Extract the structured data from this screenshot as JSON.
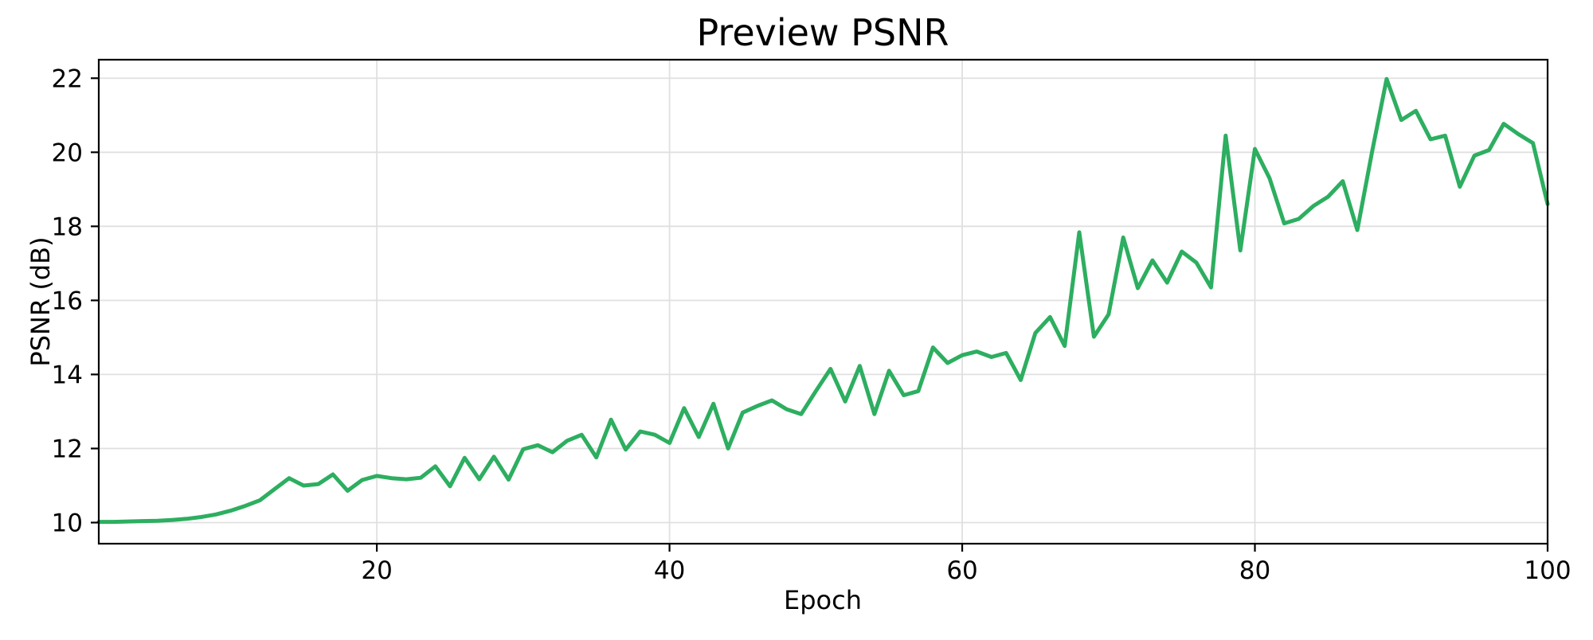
{
  "figure": {
    "background": "#ffffff",
    "text_color": "#000000"
  },
  "chart_data": {
    "type": "line",
    "title": "Preview PSNR",
    "xlabel": "Epoch",
    "ylabel": "PSNR (dB)",
    "grid": true,
    "legend": false,
    "xlim": [
      1,
      100
    ],
    "ylim": [
      9.43,
      22.5
    ],
    "x_ticks": [
      20,
      40,
      60,
      80,
      100
    ],
    "y_ticks": [
      10,
      12,
      14,
      16,
      18,
      20,
      22
    ],
    "series": [
      {
        "name": "preview-psnr",
        "color": "#2dae60",
        "line_width": 5,
        "x": [
          1,
          2,
          3,
          4,
          5,
          6,
          7,
          8,
          9,
          10,
          11,
          12,
          13,
          14,
          15,
          16,
          17,
          18,
          19,
          20,
          21,
          22,
          23,
          24,
          25,
          26,
          27,
          28,
          29,
          30,
          31,
          32,
          33,
          34,
          35,
          36,
          37,
          38,
          39,
          40,
          41,
          42,
          43,
          44,
          45,
          46,
          47,
          48,
          49,
          50,
          51,
          52,
          53,
          54,
          55,
          56,
          57,
          58,
          59,
          60,
          61,
          62,
          63,
          64,
          65,
          66,
          67,
          68,
          69,
          70,
          71,
          72,
          73,
          74,
          75,
          76,
          77,
          78,
          79,
          80,
          81,
          82,
          83,
          84,
          85,
          86,
          87,
          88,
          89,
          90,
          91,
          92,
          93,
          94,
          95,
          96,
          97,
          98,
          99,
          100
        ],
        "values": [
          10.02,
          10.02,
          10.03,
          10.04,
          10.05,
          10.07,
          10.1,
          10.15,
          10.22,
          10.32,
          10.45,
          10.6,
          10.9,
          11.2,
          11.0,
          11.04,
          11.3,
          10.86,
          11.15,
          11.26,
          11.2,
          11.17,
          11.21,
          11.52,
          10.98,
          11.75,
          11.17,
          11.78,
          11.16,
          11.98,
          12.09,
          11.9,
          12.21,
          12.37,
          11.76,
          12.78,
          11.97,
          12.46,
          12.37,
          12.15,
          13.09,
          12.31,
          13.21,
          12.0,
          12.97,
          13.15,
          13.3,
          13.06,
          12.93,
          13.55,
          14.15,
          13.27,
          14.23,
          12.93,
          14.1,
          13.44,
          13.55,
          14.73,
          14.31,
          14.52,
          14.62,
          14.47,
          14.58,
          13.85,
          15.12,
          15.55,
          14.77,
          17.84,
          15.02,
          15.62,
          17.7,
          16.33,
          17.08,
          16.48,
          17.32,
          17.02,
          16.35,
          20.45,
          17.35,
          20.09,
          19.3,
          18.08,
          18.2,
          18.55,
          18.8,
          19.22,
          17.9,
          20.0,
          21.98,
          20.87,
          21.12,
          20.35,
          20.45,
          19.07,
          19.91,
          20.06,
          20.77,
          20.49,
          20.25,
          18.6
        ]
      }
    ],
    "style": {
      "grid_color": "#e0e0e0",
      "spine_color": "#000000",
      "tick_color": "#000000",
      "background": "#ffffff"
    }
  }
}
